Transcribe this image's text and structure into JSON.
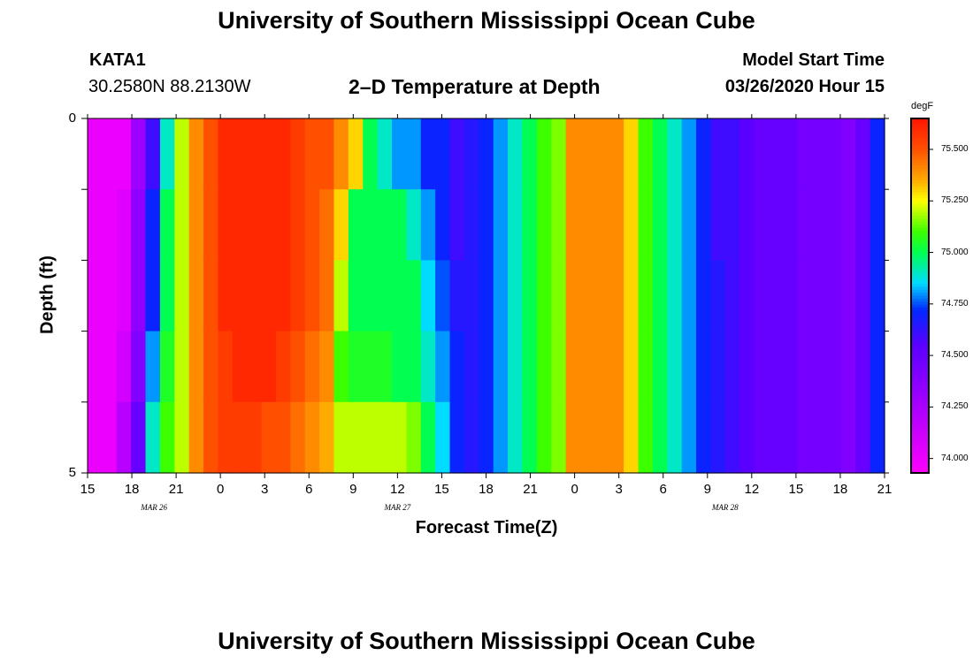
{
  "header": {
    "title_top": "University of Southern Mississippi Ocean Cube",
    "station": "KATA1",
    "coords": "30.2580N 88.2130W",
    "plot_title": "2–D Temperature at Depth",
    "model_label": "Model Start Time",
    "model_time": "03/26/2020 Hour 15",
    "title_bottom": "University of Southern Mississippi Ocean Cube"
  },
  "chart_data": {
    "type": "heatmap",
    "title": "2–D Temperature at Depth",
    "xlabel": "Forecast Time(Z)",
    "ylabel": "Depth (ft)",
    "colorbar_label": "degF",
    "x_tick_labels": [
      "15",
      "18",
      "21",
      "0",
      "3",
      "6",
      "9",
      "12",
      "15",
      "18",
      "21",
      "0",
      "3",
      "6",
      "9",
      "12",
      "15",
      "18",
      "21"
    ],
    "date_labels": [
      "MAR 26",
      "MAR 27",
      "MAR 28"
    ],
    "y_tick_labels": [
      "0",
      "5"
    ],
    "ylim": [
      0,
      5
    ],
    "x_hours_since_start": [
      0,
      1,
      2,
      3,
      4,
      5,
      6,
      7,
      8,
      9,
      10,
      11,
      12,
      13,
      14,
      15,
      16,
      17,
      18,
      19,
      20,
      21,
      22,
      23,
      24,
      25,
      26,
      27,
      28,
      29,
      30,
      31,
      32,
      33,
      34,
      35,
      36,
      37,
      38,
      39,
      40,
      41,
      42,
      43,
      44,
      45,
      46,
      47,
      48,
      49,
      50,
      51,
      52,
      53,
      54
    ],
    "depth_levels_ft": [
      0,
      1,
      2,
      3,
      4,
      5
    ],
    "values_degF": [
      [
        74.0,
        74.0,
        74.0,
        74.3,
        74.6,
        74.9,
        75.2,
        75.4,
        75.5,
        75.6,
        75.6,
        75.6,
        75.6,
        75.6,
        75.55,
        75.5,
        75.5,
        75.4,
        75.3,
        75.0,
        74.9,
        74.8,
        74.8,
        74.7,
        74.7,
        74.6,
        74.65,
        74.7,
        74.8,
        74.9,
        75.0,
        75.1,
        75.15,
        75.4,
        75.4,
        75.4,
        75.4,
        75.3,
        75.1,
        75.0,
        74.9,
        74.8,
        74.7,
        74.6,
        74.6,
        74.55,
        74.5,
        74.5,
        74.5,
        74.45,
        74.45,
        74.45,
        74.4,
        74.5,
        74.7
      ],
      [
        74.0,
        74.0,
        74.05,
        74.35,
        74.7,
        75.0,
        75.2,
        75.4,
        75.5,
        75.6,
        75.6,
        75.6,
        75.6,
        75.6,
        75.55,
        75.5,
        75.45,
        75.3,
        75.0,
        75.0,
        75.0,
        75.0,
        74.9,
        74.8,
        74.7,
        74.6,
        74.65,
        74.7,
        74.8,
        74.9,
        75.0,
        75.1,
        75.15,
        75.4,
        75.4,
        75.4,
        75.4,
        75.3,
        75.1,
        75.0,
        74.9,
        74.8,
        74.7,
        74.6,
        74.6,
        74.55,
        74.5,
        74.5,
        74.5,
        74.45,
        74.45,
        74.45,
        74.4,
        74.5,
        74.7
      ],
      [
        74.0,
        74.0,
        74.05,
        74.35,
        74.7,
        75.0,
        75.2,
        75.4,
        75.5,
        75.6,
        75.6,
        75.6,
        75.6,
        75.6,
        75.55,
        75.5,
        75.45,
        75.2,
        75.0,
        75.0,
        75.0,
        75.0,
        75.0,
        74.85,
        74.75,
        74.65,
        74.65,
        74.7,
        74.8,
        74.9,
        75.0,
        75.1,
        75.15,
        75.4,
        75.4,
        75.4,
        75.4,
        75.3,
        75.1,
        75.0,
        74.9,
        74.8,
        74.7,
        74.65,
        74.6,
        74.55,
        74.5,
        74.5,
        74.5,
        74.45,
        74.45,
        74.45,
        74.4,
        74.5,
        74.7
      ],
      [
        74.0,
        74.0,
        74.1,
        74.4,
        74.8,
        75.05,
        75.2,
        75.4,
        75.5,
        75.55,
        75.6,
        75.6,
        75.6,
        75.55,
        75.5,
        75.45,
        75.4,
        75.1,
        75.05,
        75.05,
        75.05,
        75.0,
        75.0,
        74.9,
        74.8,
        74.7,
        74.65,
        74.7,
        74.8,
        74.9,
        75.0,
        75.1,
        75.15,
        75.4,
        75.4,
        75.4,
        75.4,
        75.3,
        75.1,
        75.0,
        74.9,
        74.8,
        74.7,
        74.65,
        74.6,
        74.55,
        74.5,
        74.5,
        74.5,
        74.45,
        74.45,
        74.45,
        74.4,
        74.5,
        74.7
      ],
      [
        74.0,
        74.0,
        74.2,
        74.5,
        74.9,
        75.1,
        75.2,
        75.4,
        75.5,
        75.55,
        75.55,
        75.55,
        75.5,
        75.5,
        75.45,
        75.4,
        75.35,
        75.2,
        75.2,
        75.2,
        75.2,
        75.2,
        75.15,
        75.0,
        74.85,
        74.7,
        74.65,
        74.7,
        74.8,
        74.9,
        75.0,
        75.1,
        75.15,
        75.4,
        75.4,
        75.4,
        75.4,
        75.3,
        75.1,
        75.0,
        74.9,
        74.8,
        74.7,
        74.65,
        74.6,
        74.55,
        74.5,
        74.5,
        74.5,
        74.45,
        74.45,
        74.45,
        74.4,
        74.5,
        74.7
      ]
    ],
    "colorbar": {
      "min": 73.93,
      "max": 75.65,
      "ticks": [
        74.0,
        74.25,
        74.5,
        74.75,
        75.0,
        75.25,
        75.5
      ],
      "tick_labels": [
        "74.000",
        "74.250",
        "74.500",
        "74.750",
        "75.000",
        "75.250",
        "75.500"
      ]
    },
    "grid": false
  }
}
